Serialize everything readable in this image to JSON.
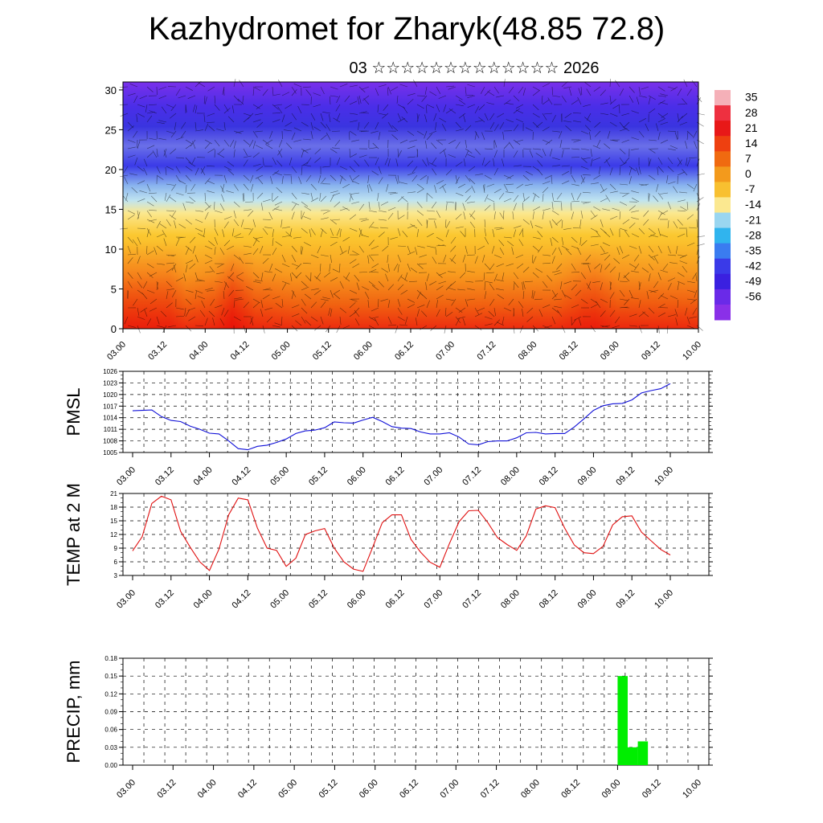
{
  "title": "Kazhydromet for Zharyk(48.85 72.8)",
  "subtitle": "03 ☆☆☆☆☆☆☆☆☆☆☆☆☆ 2026",
  "colors": {
    "pmsl_line": "#1010d8",
    "temp_line": "#e01010",
    "precip_bar": "#00ee00"
  },
  "chart_data": [
    {
      "type": "heatmap",
      "name": "vertical-profile",
      "ylim": [
        0,
        31
      ],
      "yticks": [
        "0",
        "5",
        "10",
        "15",
        "20",
        "25",
        "30"
      ],
      "xticks": [
        "03.00",
        "03.12",
        "04.00",
        "04.12",
        "05.00",
        "05.12",
        "06.00",
        "06.12",
        "07.00",
        "07.12",
        "08.00",
        "08.12",
        "09.00",
        "09.12",
        "10.00"
      ],
      "colorbar_labels": [
        "35",
        "28",
        "21",
        "14",
        "7",
        "0",
        "-7",
        "-14",
        "-21",
        "-28",
        "-35",
        "-42",
        "-49",
        "-56"
      ],
      "overlay": "wind barbs"
    },
    {
      "type": "line",
      "name": "pmsl",
      "ylabel": "PMSL",
      "ylim": [
        1005,
        1026
      ],
      "yticks": [
        "1005",
        "1008",
        "1011",
        "1014",
        "1017",
        "1020",
        "1023",
        "1026"
      ],
      "xticks": [
        "03.00",
        "03.12",
        "04.00",
        "04.12",
        "05.00",
        "05.12",
        "06.00",
        "06.12",
        "07.00",
        "07.12",
        "08.00",
        "08.12",
        "09.00",
        "09.12",
        "10.00"
      ],
      "x": [
        0,
        3,
        6,
        9,
        12,
        15,
        18,
        21,
        24,
        27,
        30,
        33,
        36,
        39,
        42,
        45,
        48,
        51,
        54,
        57,
        60,
        63,
        66,
        69,
        72,
        75,
        78,
        81,
        84,
        87,
        90,
        93,
        96,
        99,
        102,
        105,
        108,
        111,
        114,
        117,
        120,
        123,
        126,
        129,
        132,
        135,
        138,
        141,
        144,
        147,
        150,
        153,
        156,
        159,
        162,
        165,
        168
      ],
      "values": [
        1015.8,
        1015.9,
        1016.0,
        1014.3,
        1013.3,
        1013.0,
        1011.8,
        1011.0,
        1010.0,
        1009.8,
        1008.0,
        1006.0,
        1005.7,
        1006.6,
        1006.9,
        1007.6,
        1008.5,
        1009.9,
        1010.6,
        1010.8,
        1011.4,
        1012.9,
        1012.7,
        1012.6,
        1013.4,
        1014.1,
        1013.0,
        1011.7,
        1011.3,
        1011.2,
        1010.3,
        1009.8,
        1009.8,
        1010.1,
        1009.0,
        1007.2,
        1007.0,
        1007.8,
        1008.0,
        1008.0,
        1008.8,
        1010.1,
        1010.2,
        1009.8,
        1009.9,
        1009.9,
        1011.6,
        1013.7,
        1015.9,
        1017.1,
        1017.6,
        1017.7,
        1018.6,
        1020.4,
        1021.0,
        1021.5,
        1022.8
      ]
    },
    {
      "type": "line",
      "name": "temp2m",
      "ylabel": "TEMP at 2 M",
      "ylim": [
        3,
        21
      ],
      "yticks": [
        "3",
        "6",
        "9",
        "12",
        "15",
        "18",
        "21"
      ],
      "xticks": [
        "03.00",
        "03.12",
        "04.00",
        "04.12",
        "05.00",
        "05.12",
        "06.00",
        "06.12",
        "07.00",
        "07.12",
        "08.00",
        "08.12",
        "09.00",
        "09.12",
        "10.00"
      ],
      "x": [
        0,
        3,
        6,
        9,
        12,
        15,
        18,
        21,
        24,
        27,
        30,
        33,
        36,
        39,
        42,
        45,
        48,
        51,
        54,
        57,
        60,
        63,
        66,
        69,
        72,
        75,
        78,
        81,
        84,
        87,
        90,
        93,
        96,
        99,
        102,
        105,
        108,
        111,
        114,
        117,
        120,
        123,
        126,
        129,
        132,
        135,
        138,
        141,
        144,
        147,
        150,
        153,
        156,
        159,
        162,
        165,
        168
      ],
      "values": [
        8.4,
        11.5,
        18.8,
        20.4,
        19.6,
        12.7,
        9.2,
        6.0,
        4.1,
        8.8,
        16.3,
        20.0,
        19.6,
        13.4,
        9.0,
        8.5,
        5.0,
        6.8,
        12.0,
        12.8,
        13.3,
        9.0,
        6.0,
        4.4,
        3.9,
        9.2,
        14.6,
        16.3,
        16.3,
        10.9,
        8.1,
        5.9,
        4.8,
        10.0,
        14.8,
        17.2,
        17.3,
        14.6,
        11.3,
        9.8,
        8.5,
        11.7,
        17.6,
        18.3,
        17.9,
        13.4,
        9.7,
        8.0,
        7.8,
        9.4,
        14.1,
        15.9,
        16.1,
        12.5,
        10.6,
        8.7,
        7.5
      ]
    },
    {
      "type": "bar",
      "name": "precip",
      "ylabel": "PRECIP, mm",
      "ylim": [
        0,
        0.18
      ],
      "yticks": [
        "0.00",
        "0.03",
        "0.06",
        "0.09",
        "0.12",
        "0.15",
        "0.18"
      ],
      "xticks": [
        "03.00",
        "03.12",
        "04.00",
        "04.12",
        "05.00",
        "05.12",
        "06.00",
        "06.12",
        "07.00",
        "07.12",
        "08.00",
        "08.12",
        "09.00",
        "09.12",
        "10.00"
      ],
      "bars": [
        {
          "x_start": 144,
          "x_end": 147,
          "value": 0.15
        },
        {
          "x_start": 147,
          "x_end": 150,
          "value": 0.03
        },
        {
          "x_start": 150,
          "x_end": 153,
          "value": 0.04
        }
      ]
    }
  ]
}
